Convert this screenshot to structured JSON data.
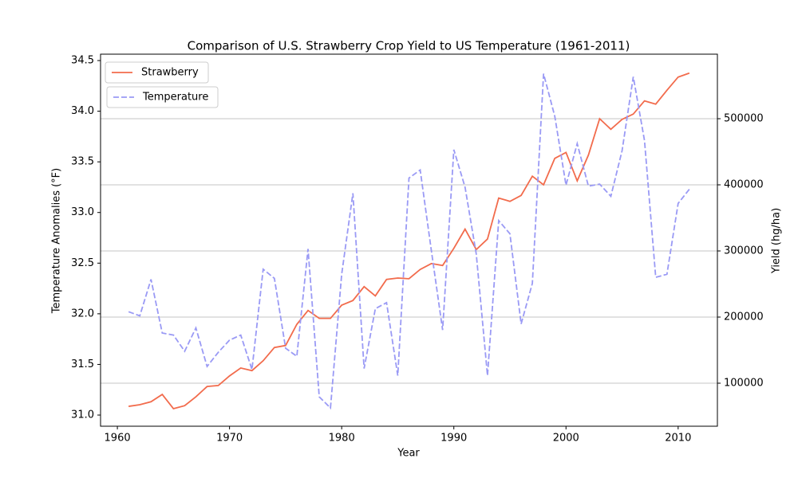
{
  "chart_data": {
    "type": "line",
    "title": "Comparison of U.S. Strawberry Crop Yield to US Temperature (1961-2011)",
    "xlabel": "Year",
    "ylabel": "Temperature Anomalies (°F)",
    "y2label": "Yield (hg/ha)",
    "x": [
      1961,
      1962,
      1963,
      1964,
      1965,
      1966,
      1967,
      1968,
      1969,
      1970,
      1971,
      1972,
      1973,
      1974,
      1975,
      1976,
      1977,
      1978,
      1979,
      1980,
      1981,
      1982,
      1983,
      1984,
      1985,
      1986,
      1987,
      1988,
      1989,
      1990,
      1991,
      1992,
      1993,
      1994,
      1995,
      1996,
      1997,
      1998,
      1999,
      2000,
      2001,
      2002,
      2003,
      2004,
      2005,
      2006,
      2007,
      2008,
      2009,
      2010,
      2011
    ],
    "series": [
      {
        "name": "Strawberry",
        "color": "#f26b4c",
        "linestyle": "solid",
        "axis": "y2",
        "values": [
          65000,
          67500,
          72000,
          83000,
          61500,
          66000,
          79500,
          95000,
          96500,
          111000,
          123000,
          119000,
          134000,
          154000,
          157000,
          189000,
          210000,
          198000,
          198000,
          218000,
          225000,
          246000,
          232000,
          257000,
          259000,
          258000,
          272000,
          281000,
          278000,
          304000,
          333000,
          302000,
          318000,
          380000,
          375000,
          384000,
          413000,
          400000,
          440000,
          449000,
          406000,
          445000,
          500000,
          484000,
          499000,
          507000,
          527000,
          522000,
          543000,
          563000,
          569000
        ]
      },
      {
        "name": "Temperature",
        "color": "#9a9af5",
        "linestyle": "dashed",
        "values": [
          32.02,
          31.98,
          32.34,
          31.81,
          31.79,
          31.63,
          31.86,
          31.48,
          31.62,
          31.74,
          31.79,
          31.45,
          32.44,
          32.35,
          31.66,
          31.58,
          32.64,
          31.18,
          31.07,
          32.39,
          33.19,
          31.46,
          32.05,
          32.11,
          31.39,
          33.34,
          33.42,
          32.62,
          31.84,
          33.62,
          33.25,
          32.59,
          31.39,
          32.92,
          32.79,
          31.9,
          32.3,
          34.37,
          33.95,
          33.27,
          33.68,
          33.26,
          33.28,
          33.16,
          33.61,
          34.34,
          33.71,
          32.36,
          32.39,
          33.09,
          33.23
        ]
      }
    ],
    "xlim": [
      1958.5,
      2013.5
    ],
    "xticks": [
      1960,
      1970,
      1980,
      1990,
      2000,
      2010
    ],
    "ylim": [
      30.89,
      34.563
    ],
    "yticks": [
      {
        "value": 31,
        "label": "31.0"
      },
      31.5,
      {
        "value": 32,
        "label": "32.0"
      },
      32.5,
      {
        "value": 33,
        "label": "33.0"
      },
      33.5,
      {
        "value": 34,
        "label": "34.0"
      },
      34.5
    ],
    "y2lim": [
      34940,
      597600
    ],
    "y2ticks": [
      100000,
      200000,
      300000,
      400000,
      500000
    ],
    "grid": "y2",
    "legend": "upper left"
  }
}
